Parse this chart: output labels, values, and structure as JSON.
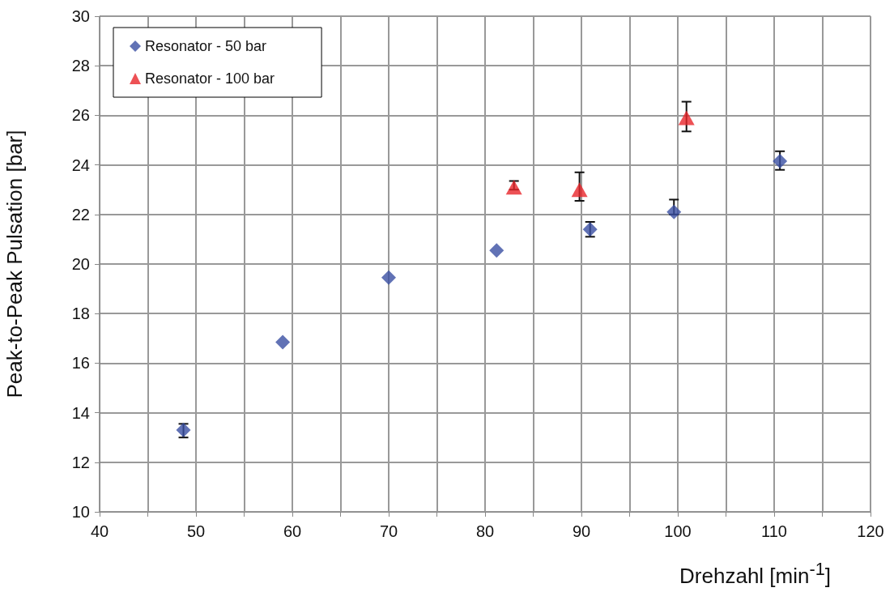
{
  "chart_data": {
    "type": "scatter",
    "xlabel": "Drehzahl [min$^{-1}$]",
    "ylabel": "Peak-to-Peak Pulsation [bar]",
    "xlim": [
      40,
      120
    ],
    "xticks": [
      40,
      {
        "value": 45,
        "label": null
      },
      50,
      {
        "value": 55,
        "label": null
      },
      60,
      {
        "value": 65,
        "label": null
      },
      70,
      {
        "value": 75,
        "label": null
      },
      80,
      {
        "value": 85,
        "label": null
      },
      90,
      {
        "value": 95,
        "label": null
      },
      100,
      {
        "value": 105,
        "label": null
      },
      110,
      {
        "value": 115,
        "label": null
      },
      120
    ],
    "ylim": [
      10,
      30
    ],
    "yticks": [
      10,
      12,
      14,
      16,
      18,
      20,
      22,
      24,
      26,
      28,
      30
    ],
    "grid": true,
    "legend": "top left",
    "series": [
      {
        "name": "Resonator - 50 bar",
        "color": "#3a4fa3",
        "marker": "diamond",
        "x": [
          48.7,
          59,
          70,
          81.2,
          90.9,
          99.6,
          110.6
        ],
        "values": [
          13.3,
          16.85,
          19.45,
          20.55,
          21.4,
          22.1,
          24.15
        ],
        "errors": [
          [
            13.0,
            13.55
          ],
          null,
          null,
          null,
          [
            21.1,
            21.7
          ],
          [
            22.0,
            22.6
          ],
          [
            23.8,
            24.55
          ]
        ]
      },
      {
        "name": "Resonator - 100 bar",
        "color": "#e8262a",
        "marker": "triangle",
        "x": [
          83,
          89.8,
          100.9
        ],
        "values": [
          23.1,
          23.0,
          25.9
        ],
        "errors": [
          [
            23.0,
            23.35
          ],
          [
            22.55,
            23.7
          ],
          [
            25.35,
            26.55
          ]
        ]
      }
    ]
  }
}
